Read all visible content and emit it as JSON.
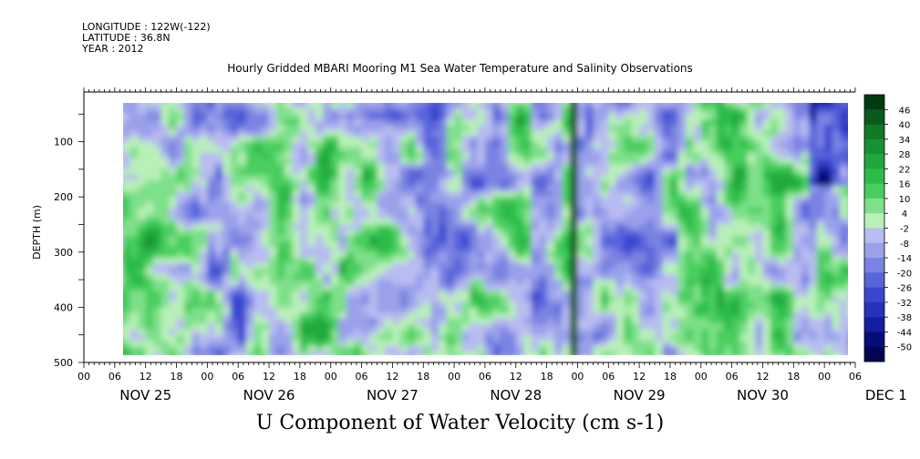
{
  "header": {
    "longitude": "LONGITUDE : 122W(-122)",
    "latitude": "LATITUDE : 36.8N",
    "year": "YEAR : 2012"
  },
  "chart_data": {
    "type": "heatmap",
    "title": "Hourly Gridded MBARI Mooring M1 Sea Water Temperature and Salinity Observations",
    "xlabel": "U Component of Water Velocity (cm s-1)",
    "ylabel": "DEPTH (m)",
    "y_ticks": [
      100,
      200,
      300,
      400,
      500
    ],
    "ylim": [
      500,
      10
    ],
    "x_hour_ticks": [
      "00",
      "06",
      "12",
      "18",
      "00",
      "06",
      "12",
      "18",
      "00",
      "06",
      "12",
      "18",
      "00",
      "06",
      "12",
      "18",
      "00",
      "06",
      "12",
      "18",
      "00",
      "06",
      "12",
      "18",
      "00",
      "06"
    ],
    "x_day_labels": [
      "NOV 25",
      "NOV 26",
      "NOV 27",
      "NOV 28",
      "NOV 29",
      "NOV 30",
      "DEC  1"
    ],
    "colorbar": {
      "labels": [
        46,
        40,
        34,
        28,
        22,
        16,
        10,
        4,
        -2,
        -8,
        -14,
        -20,
        -26,
        -32,
        -38,
        -44,
        -50
      ],
      "colors": [
        "#003a10",
        "#0a5a1e",
        "#117a27",
        "#179232",
        "#20a83e",
        "#2cbc4a",
        "#48ce5e",
        "#7ee08a",
        "#b8f0b8",
        "#b8bcf0",
        "#9aa0ea",
        "#7a82e2",
        "#5864da",
        "#3a46d0",
        "#2632bc",
        "#141ea0",
        "#060d78",
        "#020652"
      ]
    },
    "value_bands": [
      {
        "day_start_hour": 6,
        "day_end_hour": 30,
        "profile": "mixed",
        "mean_u": 4
      },
      {
        "day_start_hour": 30,
        "day_end_hour": 54,
        "profile": "mixed",
        "mean_u": 6
      },
      {
        "day_start_hour": 54,
        "day_end_hour": 78,
        "profile": "mixed",
        "mean_u": 0
      },
      {
        "day_start_hour": 78,
        "day_end_hour": 102,
        "profile": "mixed",
        "mean_u": -2
      },
      {
        "day_start_hour": 102,
        "day_end_hour": 126,
        "profile": "mixed",
        "mean_u": 4
      },
      {
        "day_start_hour": 126,
        "day_end_hour": 150,
        "profile": "mixed",
        "mean_u": 6
      }
    ]
  }
}
